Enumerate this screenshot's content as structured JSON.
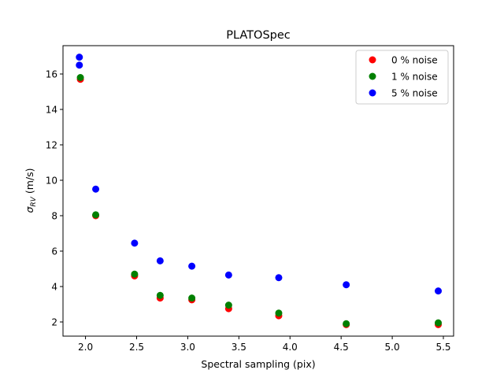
{
  "chart_data": {
    "type": "scatter",
    "title": "PLATOSpec",
    "xlabel": "Spectral sampling (pix)",
    "ylabel_main": "σ",
    "ylabel_sub": "RV",
    "ylabel_unit": " (m/s)",
    "xlim": [
      1.78,
      5.6
    ],
    "ylim": [
      1.2,
      17.6
    ],
    "xticks": [
      2.0,
      2.5,
      3.0,
      3.5,
      4.0,
      4.5,
      5.0,
      5.5
    ],
    "xtick_labels": [
      "2.0",
      "2.5",
      "3.0",
      "3.5",
      "4.0",
      "4.5",
      "5.0",
      "5.5"
    ],
    "yticks": [
      2,
      4,
      6,
      8,
      10,
      12,
      14,
      16
    ],
    "ytick_labels": [
      "2",
      "4",
      "6",
      "8",
      "10",
      "12",
      "14",
      "16"
    ],
    "legend_position": "top-right",
    "grid": false,
    "series": [
      {
        "name": "0 % noise",
        "color": "#ff0000",
        "points": [
          [
            1.95,
            15.7
          ],
          [
            2.1,
            8.0
          ],
          [
            2.48,
            4.6
          ],
          [
            2.73,
            3.35
          ],
          [
            3.04,
            3.25
          ],
          [
            3.4,
            2.75
          ],
          [
            3.89,
            2.35
          ],
          [
            4.55,
            1.85
          ],
          [
            5.45,
            1.85
          ]
        ]
      },
      {
        "name": "1 % noise",
        "color": "#008000",
        "points": [
          [
            1.95,
            15.8
          ],
          [
            2.1,
            8.05
          ],
          [
            2.48,
            4.7
          ],
          [
            2.73,
            3.5
          ],
          [
            3.04,
            3.35
          ],
          [
            3.4,
            2.95
          ],
          [
            3.89,
            2.5
          ],
          [
            4.55,
            1.9
          ],
          [
            5.45,
            1.95
          ]
        ]
      },
      {
        "name": "5 % noise",
        "color": "#0000ff",
        "points": [
          [
            1.94,
            16.95
          ],
          [
            1.94,
            16.5
          ],
          [
            2.1,
            9.5
          ],
          [
            2.48,
            6.45
          ],
          [
            2.73,
            5.45
          ],
          [
            3.04,
            5.15
          ],
          [
            3.4,
            4.65
          ],
          [
            3.89,
            4.5
          ],
          [
            4.55,
            4.1
          ],
          [
            5.45,
            3.75
          ]
        ]
      }
    ]
  }
}
